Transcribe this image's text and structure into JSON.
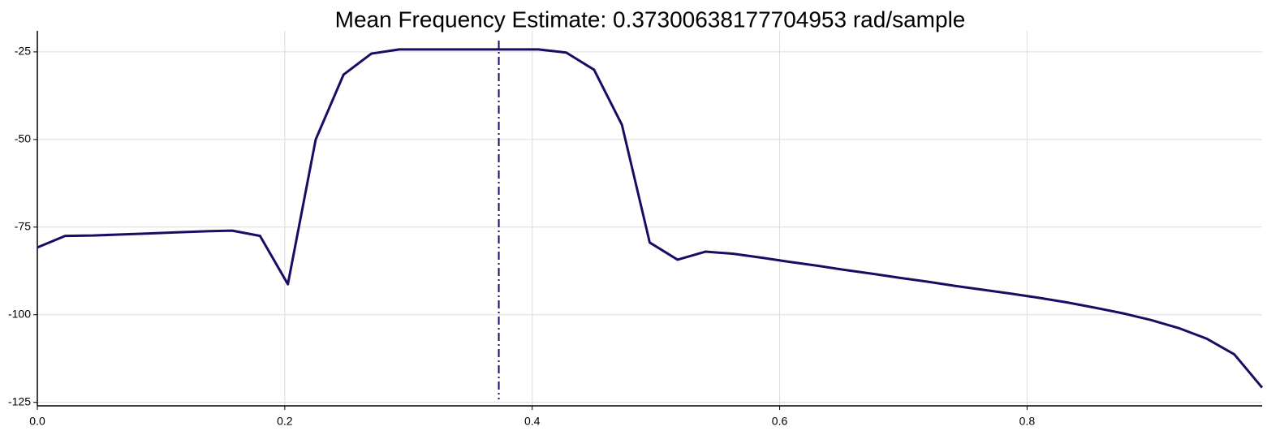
{
  "chart_data": {
    "type": "line",
    "title": "Mean Frequency Estimate: 0.37300638177704953 rad/sample",
    "x": [
      0,
      0.0225,
      0.045,
      0.0675,
      0.09,
      0.1125,
      0.135,
      0.1575,
      0.18,
      0.2025,
      0.225,
      0.2475,
      0.27,
      0.2925,
      0.315,
      0.3375,
      0.36,
      0.3825,
      0.405,
      0.4275,
      0.45,
      0.4725,
      0.495,
      0.5175,
      0.54,
      0.5625,
      0.585,
      0.6075,
      0.63,
      0.6525,
      0.675,
      0.6975,
      0.72,
      0.7425,
      0.765,
      0.7875,
      0.81,
      0.8325,
      0.855,
      0.8775,
      0.9,
      0.9225,
      0.945,
      0.9675,
      0.99
    ],
    "values": [
      -80.8,
      -77.5,
      -77.4,
      -77.1,
      -76.8,
      -76.5,
      -76.2,
      -76.0,
      -77.5,
      -91.3,
      -50,
      -31.5,
      -25.5,
      -24.3,
      -24.3,
      -24.3,
      -24.3,
      -24.3,
      -24.3,
      -25.2,
      -30.1,
      -45.8,
      -79.4,
      -84.3,
      -82.0,
      -82.6,
      -83.7,
      -84.9,
      -86.0,
      -87.2,
      -88.3,
      -89.5,
      -90.6,
      -91.8,
      -92.9,
      -94.0,
      -95.2,
      -96.5,
      -98.0,
      -99.6,
      -101.5,
      -103.8,
      -106.8,
      -111.3,
      -120.8
    ],
    "color": "#1f0a63",
    "vline": {
      "x": 0.37300638177704953,
      "color": "#1f0a63",
      "style": "dashdot"
    },
    "xlim": [
      0,
      0.99
    ],
    "ylim": [
      -126,
      -19
    ],
    "xticks": [
      {
        "value": 0,
        "label": "0.0"
      },
      0.2,
      0.4,
      0.6,
      0.8
    ],
    "yticks": [
      -125,
      -100,
      -75,
      -50,
      -25
    ],
    "grid": true
  }
}
